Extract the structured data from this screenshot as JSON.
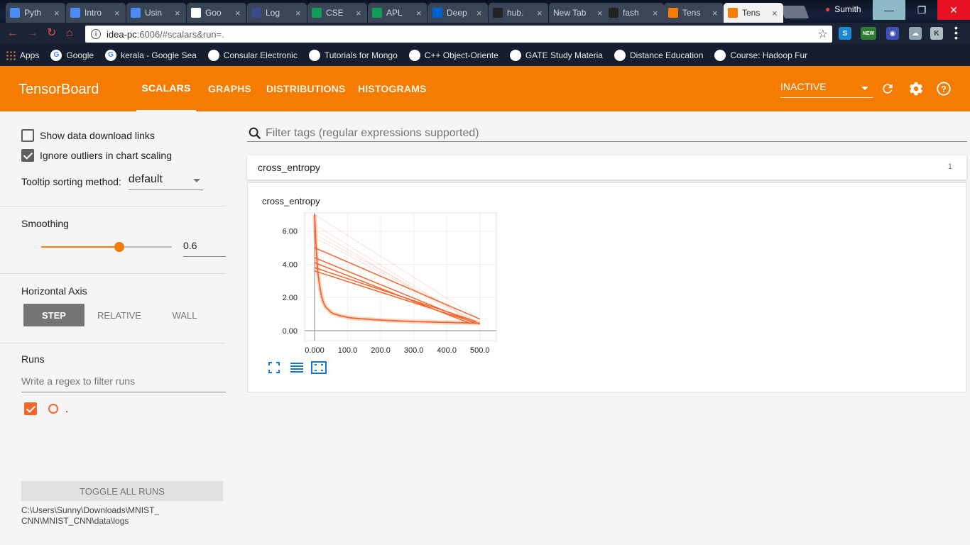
{
  "browser": {
    "tabs": [
      {
        "label": "Pyth",
        "icon": "github-icon",
        "color": "#4c8bf5"
      },
      {
        "label": "Intro",
        "icon": "page-icon",
        "color": "#4c8bf5"
      },
      {
        "label": "Usin",
        "icon": "page-icon",
        "color": "#4c8bf5"
      },
      {
        "label": "Goo",
        "icon": "google-icon",
        "color": "#ffffff"
      },
      {
        "label": "Log",
        "icon": "h-icon",
        "color": "#3b4a8a"
      },
      {
        "label": "CSE",
        "icon": "sheets-icon",
        "color": "#0f9d58"
      },
      {
        "label": "APL",
        "icon": "sheets-icon",
        "color": "#0f9d58"
      },
      {
        "label": "Deep",
        "icon": "box-icon",
        "color": "#0061d5"
      },
      {
        "label": "hub.",
        "icon": "github-icon",
        "color": "#222222"
      },
      {
        "label": "New Tab",
        "icon": "",
        "color": ""
      },
      {
        "label": "fash",
        "icon": "github-icon",
        "color": "#222222"
      },
      {
        "label": "Tens",
        "icon": "tensorboard-icon",
        "color": "#f57c00"
      },
      {
        "label": "Tens",
        "icon": "tensorboard-icon",
        "color": "#f57c00"
      }
    ],
    "active_tab": 12,
    "profile": "Sumith",
    "address_host": "idea-pc",
    "address_path": ":6006/#scalars&run=.",
    "ext_new_label": "NEW",
    "bookmarks": [
      {
        "label": "Apps",
        "icon": "apps-grid-icon"
      },
      {
        "label": "Google",
        "icon": "google-icon"
      },
      {
        "label": "kerala - Google Sea",
        "icon": "google-icon"
      },
      {
        "label": "Consular Electronic",
        "icon": "seal-icon"
      },
      {
        "label": "Tutorials for Mongo",
        "icon": "tutorial-icon"
      },
      {
        "label": "C++ Object-Oriente",
        "icon": "tutorial-icon"
      },
      {
        "label": "GATE Study Materia",
        "icon": "gate-icon"
      },
      {
        "label": "Distance Education",
        "icon": "university-icon"
      },
      {
        "label": "Course: Hadoop Fur",
        "icon": "course-icon"
      }
    ]
  },
  "header": {
    "title": "TensorBoard",
    "tabs": [
      "SCALARS",
      "GRAPHS",
      "DISTRIBUTIONS",
      "HISTOGRAMS"
    ],
    "active_tab": "SCALARS",
    "run_select": "INACTIVE",
    "accent": "#f57c00"
  },
  "sidebar": {
    "show_download_label": "Show data download links",
    "show_download_checked": false,
    "ignore_outliers_label": "Ignore outliers in chart scaling",
    "ignore_outliers_checked": true,
    "tooltip_sort_label": "Tooltip sorting method:",
    "tooltip_sort_value": "default",
    "smoothing_title": "Smoothing",
    "smoothing_value": "0.6",
    "smoothing_fraction": 0.6,
    "horizontal_axis_title": "Horizontal Axis",
    "axis_options": [
      "STEP",
      "RELATIVE",
      "WALL"
    ],
    "axis_selected": "STEP",
    "runs_title": "Runs",
    "runs_filter_placeholder": "Write a regex to filter runs",
    "run_name": ".",
    "run_color": "#f4652c",
    "toggle_all_label": "TOGGLE ALL RUNS",
    "logdir_line1": "C:\\Users\\Sunny\\Downloads\\MNIST_",
    "logdir_line2": "CNN\\MNIST_CNN\\data\\logs"
  },
  "main": {
    "filter_placeholder": "Filter tags (regular expressions supported)",
    "category_name": "cross_entropy",
    "category_count": "1"
  },
  "chart_data": {
    "type": "line",
    "title": "cross_entropy",
    "xlabel": "",
    "ylabel": "",
    "x_ticks": [
      "0.000",
      "100.0",
      "200.0",
      "300.0",
      "400.0",
      "500.0"
    ],
    "y_ticks": [
      "0.00",
      "2.00",
      "4.00",
      "6.00"
    ],
    "xlim": [
      -30,
      550
    ],
    "ylim": [
      -0.6,
      7.1
    ],
    "series": [
      {
        "name": ".",
        "color": "#f4652c",
        "x": [
          0,
          2,
          4,
          6,
          8,
          10,
          14,
          18,
          22,
          26,
          30,
          35,
          40,
          45,
          50,
          60,
          70,
          80,
          90,
          100,
          120,
          140,
          160,
          180,
          200,
          220,
          240,
          260,
          280,
          300,
          320,
          340,
          360,
          380,
          400,
          420,
          440,
          460,
          480,
          500
        ],
        "y": [
          7.0,
          6.2,
          5.4,
          4.6,
          4.0,
          3.5,
          2.9,
          2.4,
          2.0,
          1.75,
          1.55,
          1.4,
          1.3,
          1.2,
          1.1,
          1.0,
          0.95,
          0.88,
          0.85,
          0.8,
          0.75,
          0.72,
          0.7,
          0.66,
          0.64,
          0.62,
          0.6,
          0.58,
          0.57,
          0.55,
          0.54,
          0.53,
          0.52,
          0.5,
          0.5,
          0.49,
          0.48,
          0.47,
          0.46,
          0.45
        ]
      }
    ],
    "restart_lines": [
      {
        "x": [
          0,
          500
        ],
        "y": [
          5.0,
          0.7
        ]
      },
      {
        "x": [
          0,
          480
        ],
        "y": [
          4.4,
          0.5
        ]
      },
      {
        "x": [
          0,
          470
        ],
        "y": [
          4.1,
          0.45
        ]
      },
      {
        "x": [
          0,
          490
        ],
        "y": [
          3.8,
          0.55
        ]
      },
      {
        "x": [
          0,
          500
        ],
        "y": [
          3.6,
          0.4
        ]
      }
    ]
  }
}
